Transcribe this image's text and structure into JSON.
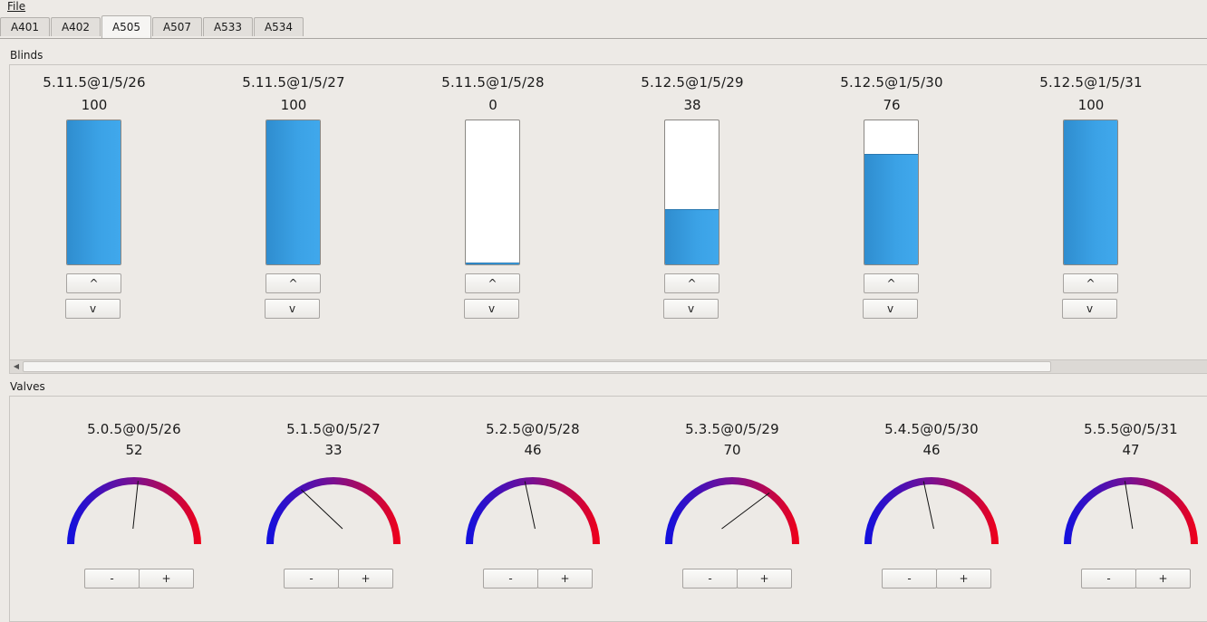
{
  "menu": {
    "file_label": "File"
  },
  "tabs": [
    {
      "label": "A401",
      "active": false
    },
    {
      "label": "A402",
      "active": false
    },
    {
      "label": "A505",
      "active": true
    },
    {
      "label": "A507",
      "active": false
    },
    {
      "label": "A533",
      "active": false
    },
    {
      "label": "A534",
      "active": false
    }
  ],
  "blinds": {
    "title": "Blinds",
    "up_label": "^",
    "down_label": "v",
    "items": [
      {
        "address": "5.11.5@1/5/26",
        "value": "100",
        "level": 100
      },
      {
        "address": "5.11.5@1/5/27",
        "value": "100",
        "level": 100
      },
      {
        "address": "5.11.5@1/5/28",
        "value": "0",
        "level": 0
      },
      {
        "address": "5.12.5@1/5/29",
        "value": "38",
        "level": 38
      },
      {
        "address": "5.12.5@1/5/30",
        "value": "76",
        "level": 76
      },
      {
        "address": "5.12.5@1/5/31",
        "value": "100",
        "level": 100
      }
    ]
  },
  "valves": {
    "title": "Valves",
    "minus_label": "-",
    "plus_label": "+",
    "items": [
      {
        "address": "5.0.5@0/5/26",
        "value": "52",
        "level": 52
      },
      {
        "address": "5.1.5@0/5/27",
        "value": "33",
        "level": 33
      },
      {
        "address": "5.2.5@0/5/28",
        "value": "46",
        "level": 46
      },
      {
        "address": "5.3.5@0/5/29",
        "value": "70",
        "level": 70
      },
      {
        "address": "5.4.5@0/5/30",
        "value": "46",
        "level": 46
      },
      {
        "address": "5.5.5@0/5/31",
        "value": "47",
        "level": 47
      }
    ]
  },
  "colors": {
    "accent": "#3ba2e6",
    "gauge_low": "#1010e0",
    "gauge_mid": "#7a1090",
    "gauge_high": "#f00018"
  }
}
